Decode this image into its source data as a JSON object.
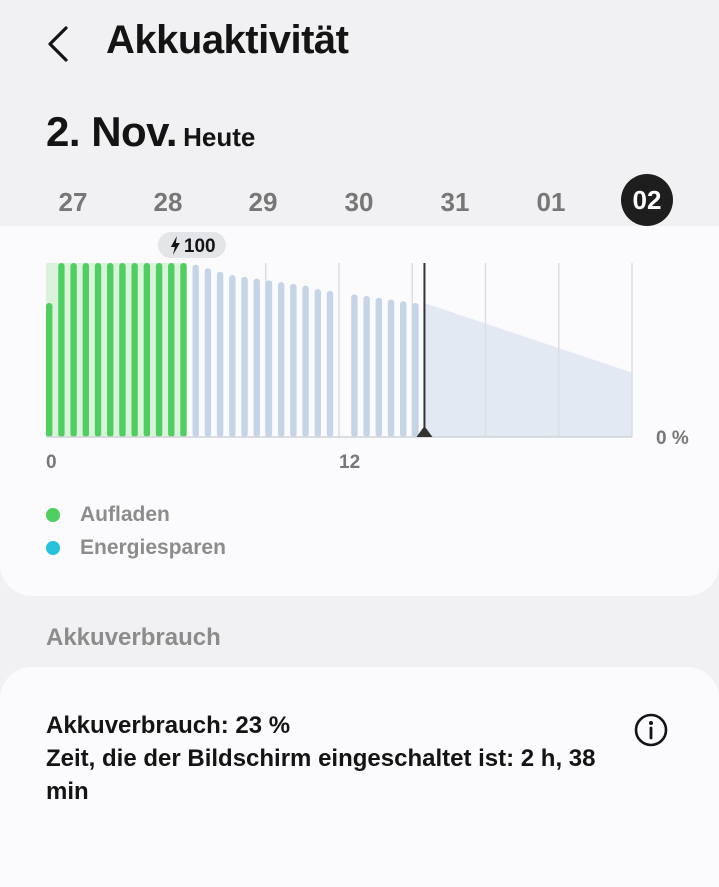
{
  "header": {
    "title": "Akkuaktivität",
    "back_icon": "chevron-left-icon"
  },
  "date": {
    "main": "2. Nov.",
    "sub": "Heute"
  },
  "days": [
    {
      "label": "27",
      "active": false
    },
    {
      "label": "28",
      "active": false
    },
    {
      "label": "29",
      "active": false
    },
    {
      "label": "30",
      "active": false
    },
    {
      "label": "31",
      "active": false
    },
    {
      "label": "01",
      "active": false
    },
    {
      "label": "02",
      "active": true
    }
  ],
  "colors": {
    "charging": "#4fcf5f",
    "energy_saving": "#26c2dc",
    "discharging": "#c5d4e6",
    "projection": "#e3e9f3",
    "active_day": "#1e1e1e"
  },
  "chart_data": {
    "type": "bar",
    "x_unit": "hour",
    "xlim": [
      0,
      24
    ],
    "ylim": [
      0,
      100
    ],
    "x_tick_labels": [
      "0",
      "12"
    ],
    "y_tick_label": "0 %",
    "charge_badge": {
      "icon": "lightning-icon",
      "label": "100"
    },
    "now_hour": 15.5,
    "legend": [
      {
        "name": "Aufladen",
        "color": "#4fcf5f"
      },
      {
        "name": "Energiesparen",
        "color": "#26c2dc"
      }
    ],
    "series": [
      {
        "name": "Aufladen",
        "x": [
          0,
          0.5,
          1,
          1.5,
          2,
          2.5,
          3,
          3.5,
          4,
          4.5,
          5,
          5.5
        ],
        "values": [
          77,
          100,
          100,
          100,
          100,
          100,
          100,
          100,
          100,
          100,
          100,
          100
        ]
      },
      {
        "name": "",
        "x": [
          6,
          6.5,
          7,
          7.5,
          8,
          8.5,
          9,
          9.5,
          10,
          10.5,
          11,
          11.5,
          12.5,
          13,
          13.5,
          14,
          14.5,
          15
        ],
        "values": [
          99,
          97,
          95,
          93,
          92,
          91,
          90,
          89,
          88,
          87,
          85,
          84,
          82,
          81,
          80,
          79,
          78,
          77
        ]
      },
      {
        "name": "",
        "type": "area",
        "x": [
          15.5,
          24
        ],
        "values": [
          77,
          37
        ]
      }
    ]
  },
  "section_title": "Akkuverbrauch",
  "usage": {
    "battery_usage": "Akkuverbrauch: 23 %",
    "screen_time": "Zeit, die der Bildschirm eingeschaltet ist: 2 h, 38 min",
    "info_icon": "info-icon"
  }
}
